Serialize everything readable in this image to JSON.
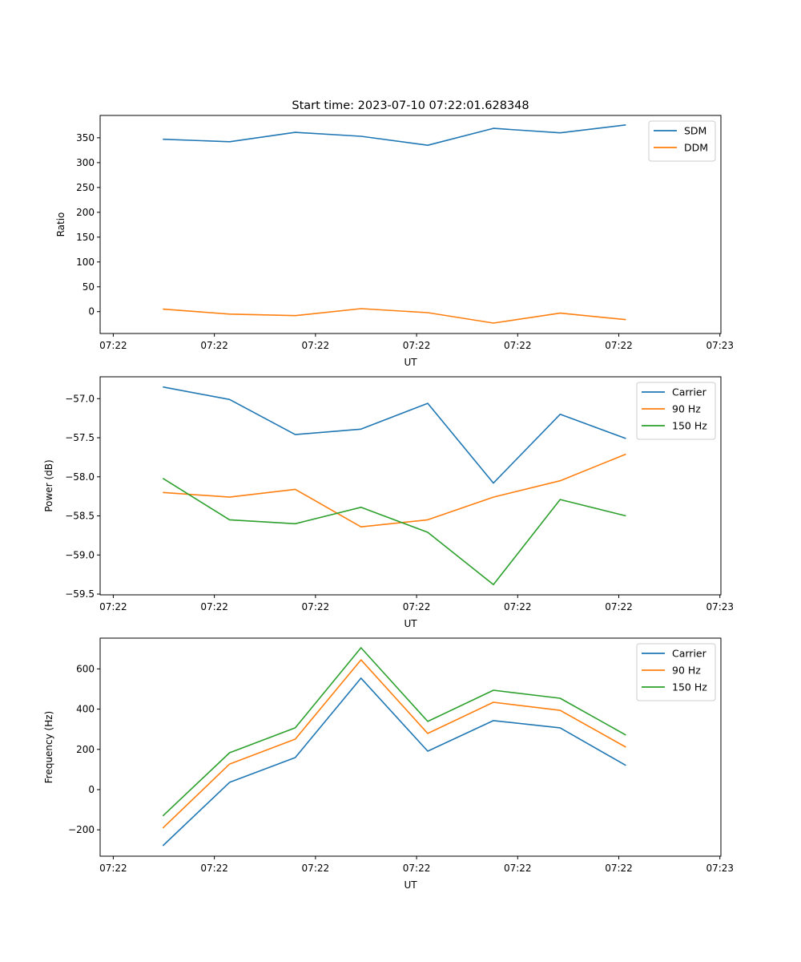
{
  "title": "Start time: 2023-07-10 07:22:01.628348",
  "chart_data": [
    {
      "type": "line",
      "title": "Start time: 2023-07-10 07:22:01.628348",
      "xlabel": "UT",
      "ylabel": "Ratio",
      "x_unit": "seconds after 07:22:00",
      "x": [
        4.9,
        11.5,
        18.0,
        24.5,
        31.1,
        37.6,
        44.2,
        50.7
      ],
      "xlim": [
        -1.3,
        60.1
      ],
      "xticks": [
        0,
        10,
        20,
        30,
        40,
        50,
        60
      ],
      "xtick_labels": [
        "07:22",
        "07:22",
        "07:22",
        "07:22",
        "07:22",
        "07:22",
        "07:23"
      ],
      "ylim": [
        -44,
        395
      ],
      "yticks": [
        0,
        50,
        100,
        150,
        200,
        250,
        300,
        350
      ],
      "ytick_labels": [
        "0",
        "50",
        "100",
        "150",
        "200",
        "250",
        "300",
        "350"
      ],
      "legend": "top-right",
      "series": [
        {
          "name": "SDM",
          "color": "#1f77b4",
          "values": [
            347,
            342,
            361,
            353,
            335,
            369,
            360,
            376
          ]
        },
        {
          "name": "DDM",
          "color": "#ff7f0e",
          "values": [
            5,
            -5,
            -8,
            6,
            -2,
            -23,
            -3,
            -16
          ]
        }
      ]
    },
    {
      "type": "line",
      "title": "",
      "xlabel": "UT",
      "ylabel": "Power (dB)",
      "x_unit": "seconds after 07:22:00",
      "x": [
        4.9,
        11.5,
        18.0,
        24.5,
        31.1,
        37.6,
        44.2,
        50.7
      ],
      "xlim": [
        -1.3,
        60.1
      ],
      "xticks": [
        0,
        10,
        20,
        30,
        40,
        50,
        60
      ],
      "xtick_labels": [
        "07:22",
        "07:22",
        "07:22",
        "07:22",
        "07:22",
        "07:22",
        "07:23"
      ],
      "ylim": [
        -59.51,
        -56.72
      ],
      "yticks": [
        -59.5,
        -59.0,
        -58.5,
        -58.0,
        -57.5,
        -57.0
      ],
      "ytick_labels": [
        "−59.5",
        "−59.0",
        "−58.5",
        "−58.0",
        "−57.5",
        "−57.0"
      ],
      "legend": "top-right",
      "series": [
        {
          "name": "Carrier",
          "color": "#1f77b4",
          "values": [
            -56.85,
            -57.01,
            -57.46,
            -57.39,
            -57.06,
            -58.08,
            -57.2,
            -57.51
          ]
        },
        {
          "name": "90 Hz",
          "color": "#ff7f0e",
          "values": [
            -58.2,
            -58.26,
            -58.16,
            -58.64,
            -58.55,
            -58.26,
            -58.05,
            -57.71
          ]
        },
        {
          "name": "150 Hz",
          "color": "#2ca02c",
          "values": [
            -58.02,
            -58.55,
            -58.6,
            -58.39,
            -58.71,
            -59.38,
            -58.29,
            -58.5
          ]
        }
      ]
    },
    {
      "type": "line",
      "title": "",
      "xlabel": "UT",
      "ylabel": "Frequency (Hz)",
      "x_unit": "seconds after 07:22:00",
      "x": [
        4.9,
        11.5,
        18.0,
        24.5,
        31.1,
        37.6,
        44.2,
        50.7
      ],
      "xlim": [
        -1.3,
        60.1
      ],
      "xticks": [
        0,
        10,
        20,
        30,
        40,
        50,
        60
      ],
      "xtick_labels": [
        "07:22",
        "07:22",
        "07:22",
        "07:22",
        "07:22",
        "07:22",
        "07:23"
      ],
      "ylim": [
        -331,
        753
      ],
      "yticks": [
        -200,
        0,
        200,
        400,
        600
      ],
      "ytick_labels": [
        "−200",
        "0",
        "200",
        "400",
        "600"
      ],
      "legend": "top-right",
      "series": [
        {
          "name": "Carrier",
          "color": "#1f77b4",
          "values": [
            -279,
            36,
            159,
            554,
            191,
            343,
            307,
            120
          ]
        },
        {
          "name": "90 Hz",
          "color": "#ff7f0e",
          "values": [
            -191,
            127,
            251,
            645,
            279,
            434,
            394,
            211
          ]
        },
        {
          "name": "150 Hz",
          "color": "#2ca02c",
          "values": [
            -131,
            183,
            307,
            705,
            339,
            494,
            454,
            271
          ]
        }
      ]
    }
  ]
}
